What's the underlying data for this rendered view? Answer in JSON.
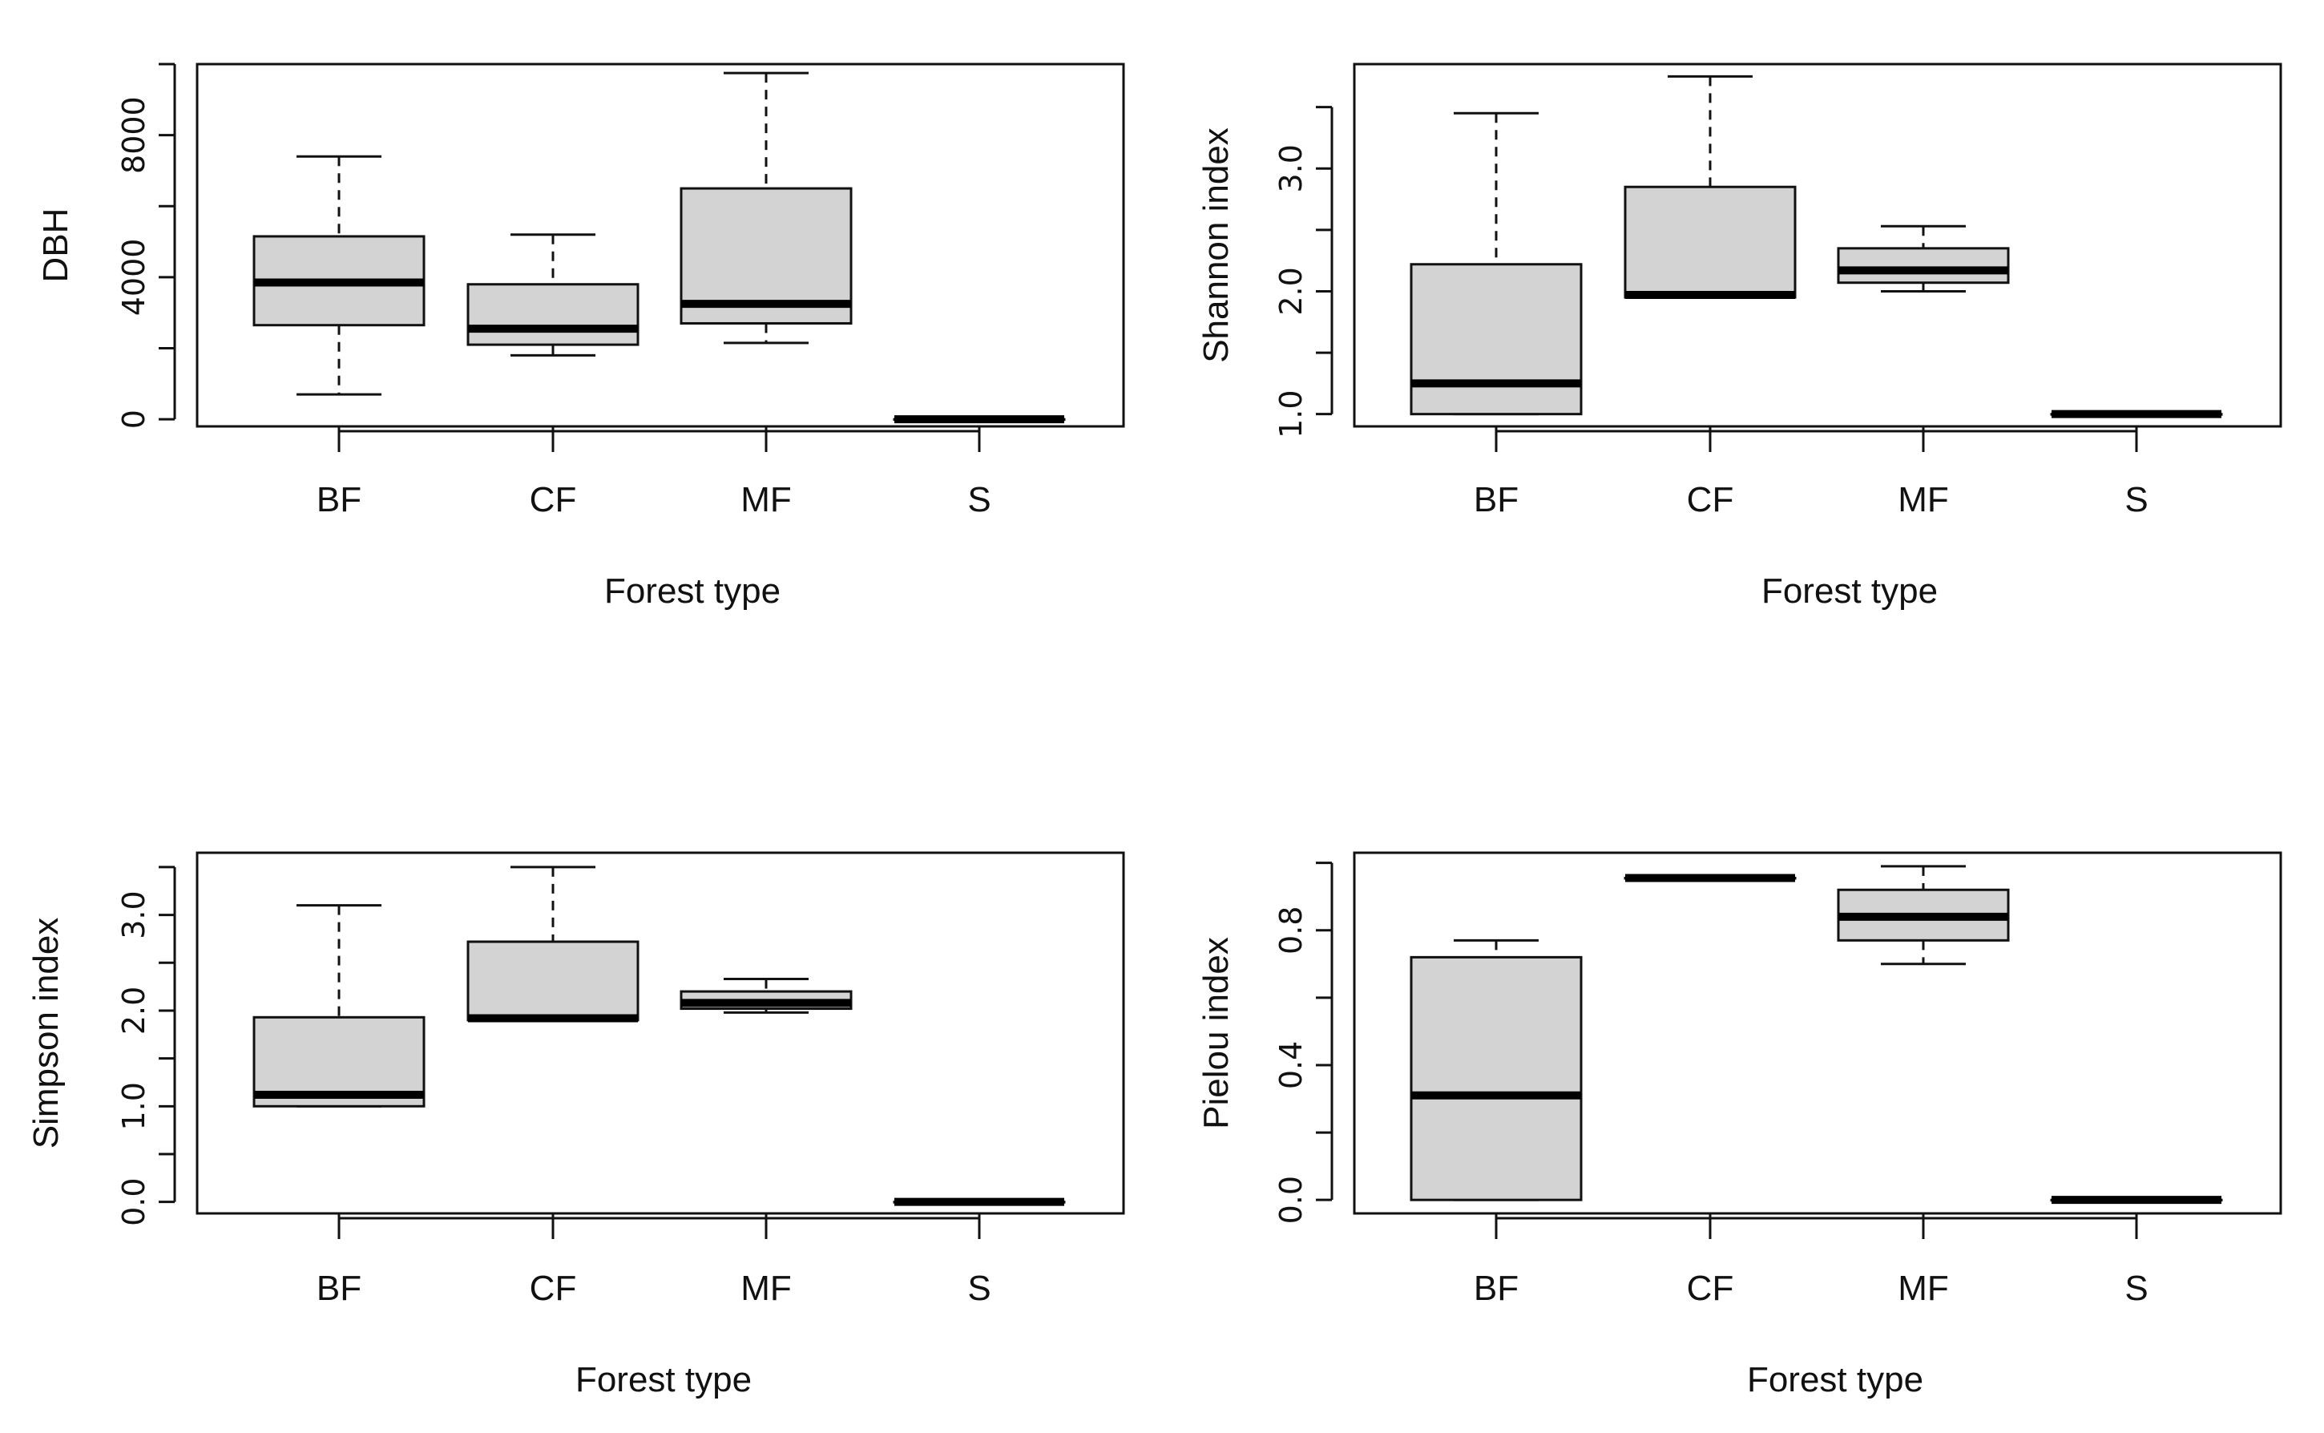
{
  "figure": {
    "background": "#ffffff",
    "box_fill": "#d3d3d3",
    "line_color": "#111111"
  },
  "chart_data": [
    {
      "type": "box",
      "id": "dbh",
      "title": "",
      "xlabel": "Forest type",
      "ylabel": "DBH",
      "ylim": [
        -200,
        10000
      ],
      "yticks": [
        0,
        4000,
        8000
      ],
      "yticks_minor": [
        2000,
        6000,
        10000
      ],
      "ytick_labels": [
        "0",
        "4000",
        "8000"
      ],
      "categories": [
        "BF",
        "CF",
        "MF",
        "S"
      ],
      "boxes": [
        {
          "category": "BF",
          "whisker_low": 700,
          "q1": 2650,
          "median": 3850,
          "q3": 5150,
          "whisker_high": 7400
        },
        {
          "category": "CF",
          "whisker_low": 1800,
          "q1": 2100,
          "median": 2550,
          "q3": 3800,
          "whisker_high": 5200
        },
        {
          "category": "MF",
          "whisker_low": 2150,
          "q1": 2700,
          "median": 3250,
          "q3": 6500,
          "whisker_high": 9750
        },
        {
          "category": "S",
          "whisker_low": 0,
          "q1": 0,
          "median": 0,
          "q3": 0,
          "whisker_high": 0
        }
      ]
    },
    {
      "type": "box",
      "id": "shannon",
      "title": "",
      "xlabel": "Forest type",
      "ylabel": "Shannon index",
      "ylim": [
        0.9,
        3.85
      ],
      "yticks": [
        1.0,
        2.0,
        3.0
      ],
      "yticks_minor": [
        1.5,
        2.5,
        3.5
      ],
      "ytick_labels": [
        "1.0",
        "2.0",
        "3.0"
      ],
      "categories": [
        "BF",
        "CF",
        "MF",
        "S"
      ],
      "boxes": [
        {
          "category": "BF",
          "whisker_low": 1.0,
          "q1": 1.0,
          "median": 1.25,
          "q3": 2.22,
          "whisker_high": 3.45
        },
        {
          "category": "CF",
          "whisker_low": 1.95,
          "q1": 1.95,
          "median": 1.97,
          "q3": 2.85,
          "whisker_high": 3.75
        },
        {
          "category": "MF",
          "whisker_low": 2.0,
          "q1": 2.07,
          "median": 2.17,
          "q3": 2.35,
          "whisker_high": 2.53
        },
        {
          "category": "S",
          "whisker_low": 1.0,
          "q1": 1.0,
          "median": 1.0,
          "q3": 1.0,
          "whisker_high": 1.0
        }
      ]
    },
    {
      "type": "box",
      "id": "simpson",
      "title": "",
      "xlabel": "Forest type",
      "ylabel": "Simpson index",
      "ylim": [
        -0.12,
        3.65
      ],
      "yticks": [
        0.0,
        1.0,
        2.0,
        3.0
      ],
      "yticks_minor": [
        0.5,
        1.5,
        2.5,
        3.5
      ],
      "ytick_labels": [
        "0.0",
        "1.0",
        "2.0",
        "3.0"
      ],
      "categories": [
        "BF",
        "CF",
        "MF",
        "S"
      ],
      "boxes": [
        {
          "category": "BF",
          "whisker_low": 1.0,
          "q1": 1.0,
          "median": 1.12,
          "q3": 1.93,
          "whisker_high": 3.1
        },
        {
          "category": "CF",
          "whisker_low": 1.9,
          "q1": 1.9,
          "median": 1.92,
          "q3": 2.72,
          "whisker_high": 3.5
        },
        {
          "category": "MF",
          "whisker_low": 1.98,
          "q1": 2.02,
          "median": 2.08,
          "q3": 2.2,
          "whisker_high": 2.33
        },
        {
          "category": "S",
          "whisker_low": 0.0,
          "q1": 0.0,
          "median": 0.0,
          "q3": 0.0,
          "whisker_high": 0.0
        }
      ]
    },
    {
      "type": "box",
      "id": "pielou",
      "title": "",
      "xlabel": "Forest type",
      "ylabel": "Pielou index",
      "ylim": [
        -0.04,
        1.03
      ],
      "yticks": [
        0.0,
        0.4,
        0.8
      ],
      "yticks_minor": [
        0.2,
        0.6,
        1.0
      ],
      "ytick_labels": [
        "0.0",
        "0.4",
        "0.8"
      ],
      "categories": [
        "BF",
        "CF",
        "MF",
        "S"
      ],
      "boxes": [
        {
          "category": "BF",
          "whisker_low": 0.0,
          "q1": 0.0,
          "median": 0.31,
          "q3": 0.72,
          "whisker_high": 0.77
        },
        {
          "category": "CF",
          "whisker_low": 0.955,
          "q1": 0.955,
          "median": 0.955,
          "q3": 0.955,
          "whisker_high": 0.955
        },
        {
          "category": "MF",
          "whisker_low": 0.7,
          "q1": 0.77,
          "median": 0.84,
          "q3": 0.92,
          "whisker_high": 0.99
        },
        {
          "category": "S",
          "whisker_low": 0.0,
          "q1": 0.0,
          "median": 0.0,
          "q3": 0.0,
          "whisker_high": 0.0
        }
      ]
    }
  ]
}
